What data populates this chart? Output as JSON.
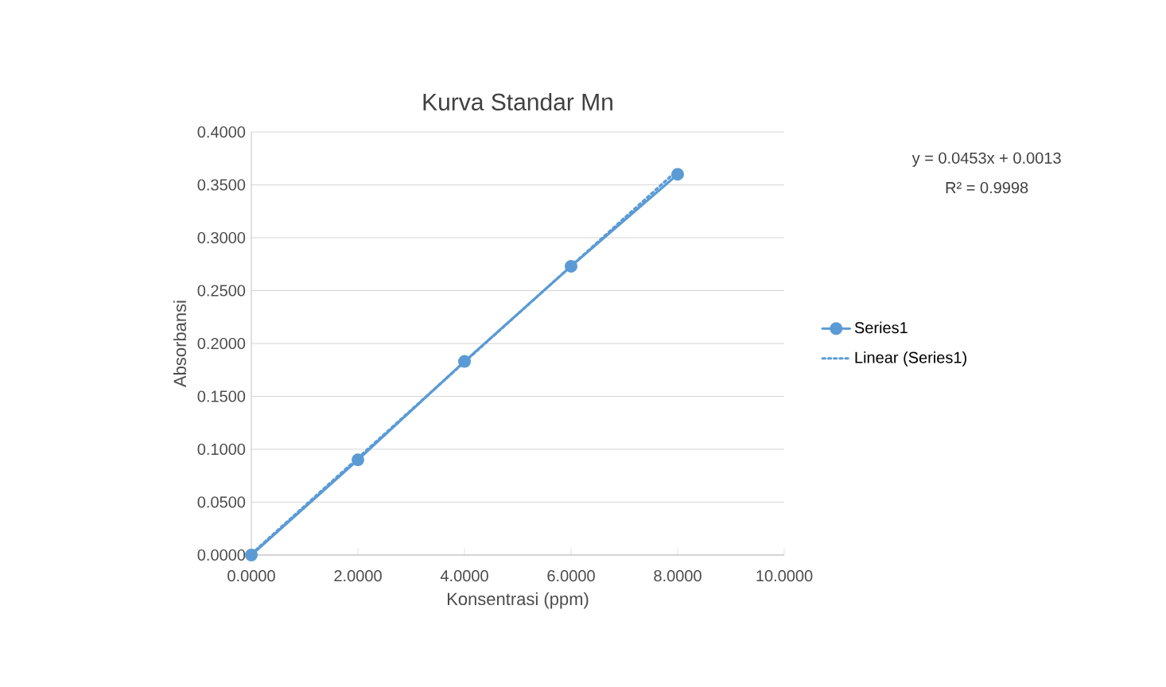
{
  "chart_data": {
    "type": "line",
    "title": "Kurva Standar Mn",
    "xlabel": "Konsentrasi (ppm)",
    "ylabel": "Absorbansi",
    "series": [
      {
        "name": "Series1",
        "color": "#5b9bd5",
        "marker": "circle",
        "line_style": "solid",
        "x": [
          0,
          2,
          4,
          6,
          8
        ],
        "values": [
          0.0,
          0.09,
          0.183,
          0.273,
          0.36
        ]
      },
      {
        "name": "Linear (Series1)",
        "color": "#5b9bd5",
        "marker": "none",
        "line_style": "dotted",
        "x": [
          0,
          8
        ],
        "values": [
          0.001,
          0.364
        ]
      }
    ],
    "xlim": [
      0,
      10
    ],
    "ylim": [
      0,
      0.4
    ],
    "xticks": [
      {
        "value": 0,
        "label": "0.0000"
      },
      {
        "value": 2,
        "label": "2.0000"
      },
      {
        "value": 4,
        "label": "4.0000"
      },
      {
        "value": 6,
        "label": "6.0000"
      },
      {
        "value": 8,
        "label": "8.0000"
      },
      {
        "value": 10,
        "label": "10.0000"
      }
    ],
    "yticks": [
      {
        "value": 0,
        "label": "0.0000"
      },
      {
        "value": 0.05,
        "label": "0.0500"
      },
      {
        "value": 0.1,
        "label": "0.1000"
      },
      {
        "value": 0.15,
        "label": "0.1500"
      },
      {
        "value": 0.2,
        "label": "0.2000"
      },
      {
        "value": 0.25,
        "label": "0.2500"
      },
      {
        "value": 0.3,
        "label": "0.3000"
      },
      {
        "value": 0.35,
        "label": "0.3500"
      },
      {
        "value": 0.4,
        "label": "0.4000"
      }
    ],
    "grid": "y",
    "legend": "right",
    "annotations": [
      "y = 0.0453x + 0.0013",
      "R² = 0.9998"
    ]
  }
}
